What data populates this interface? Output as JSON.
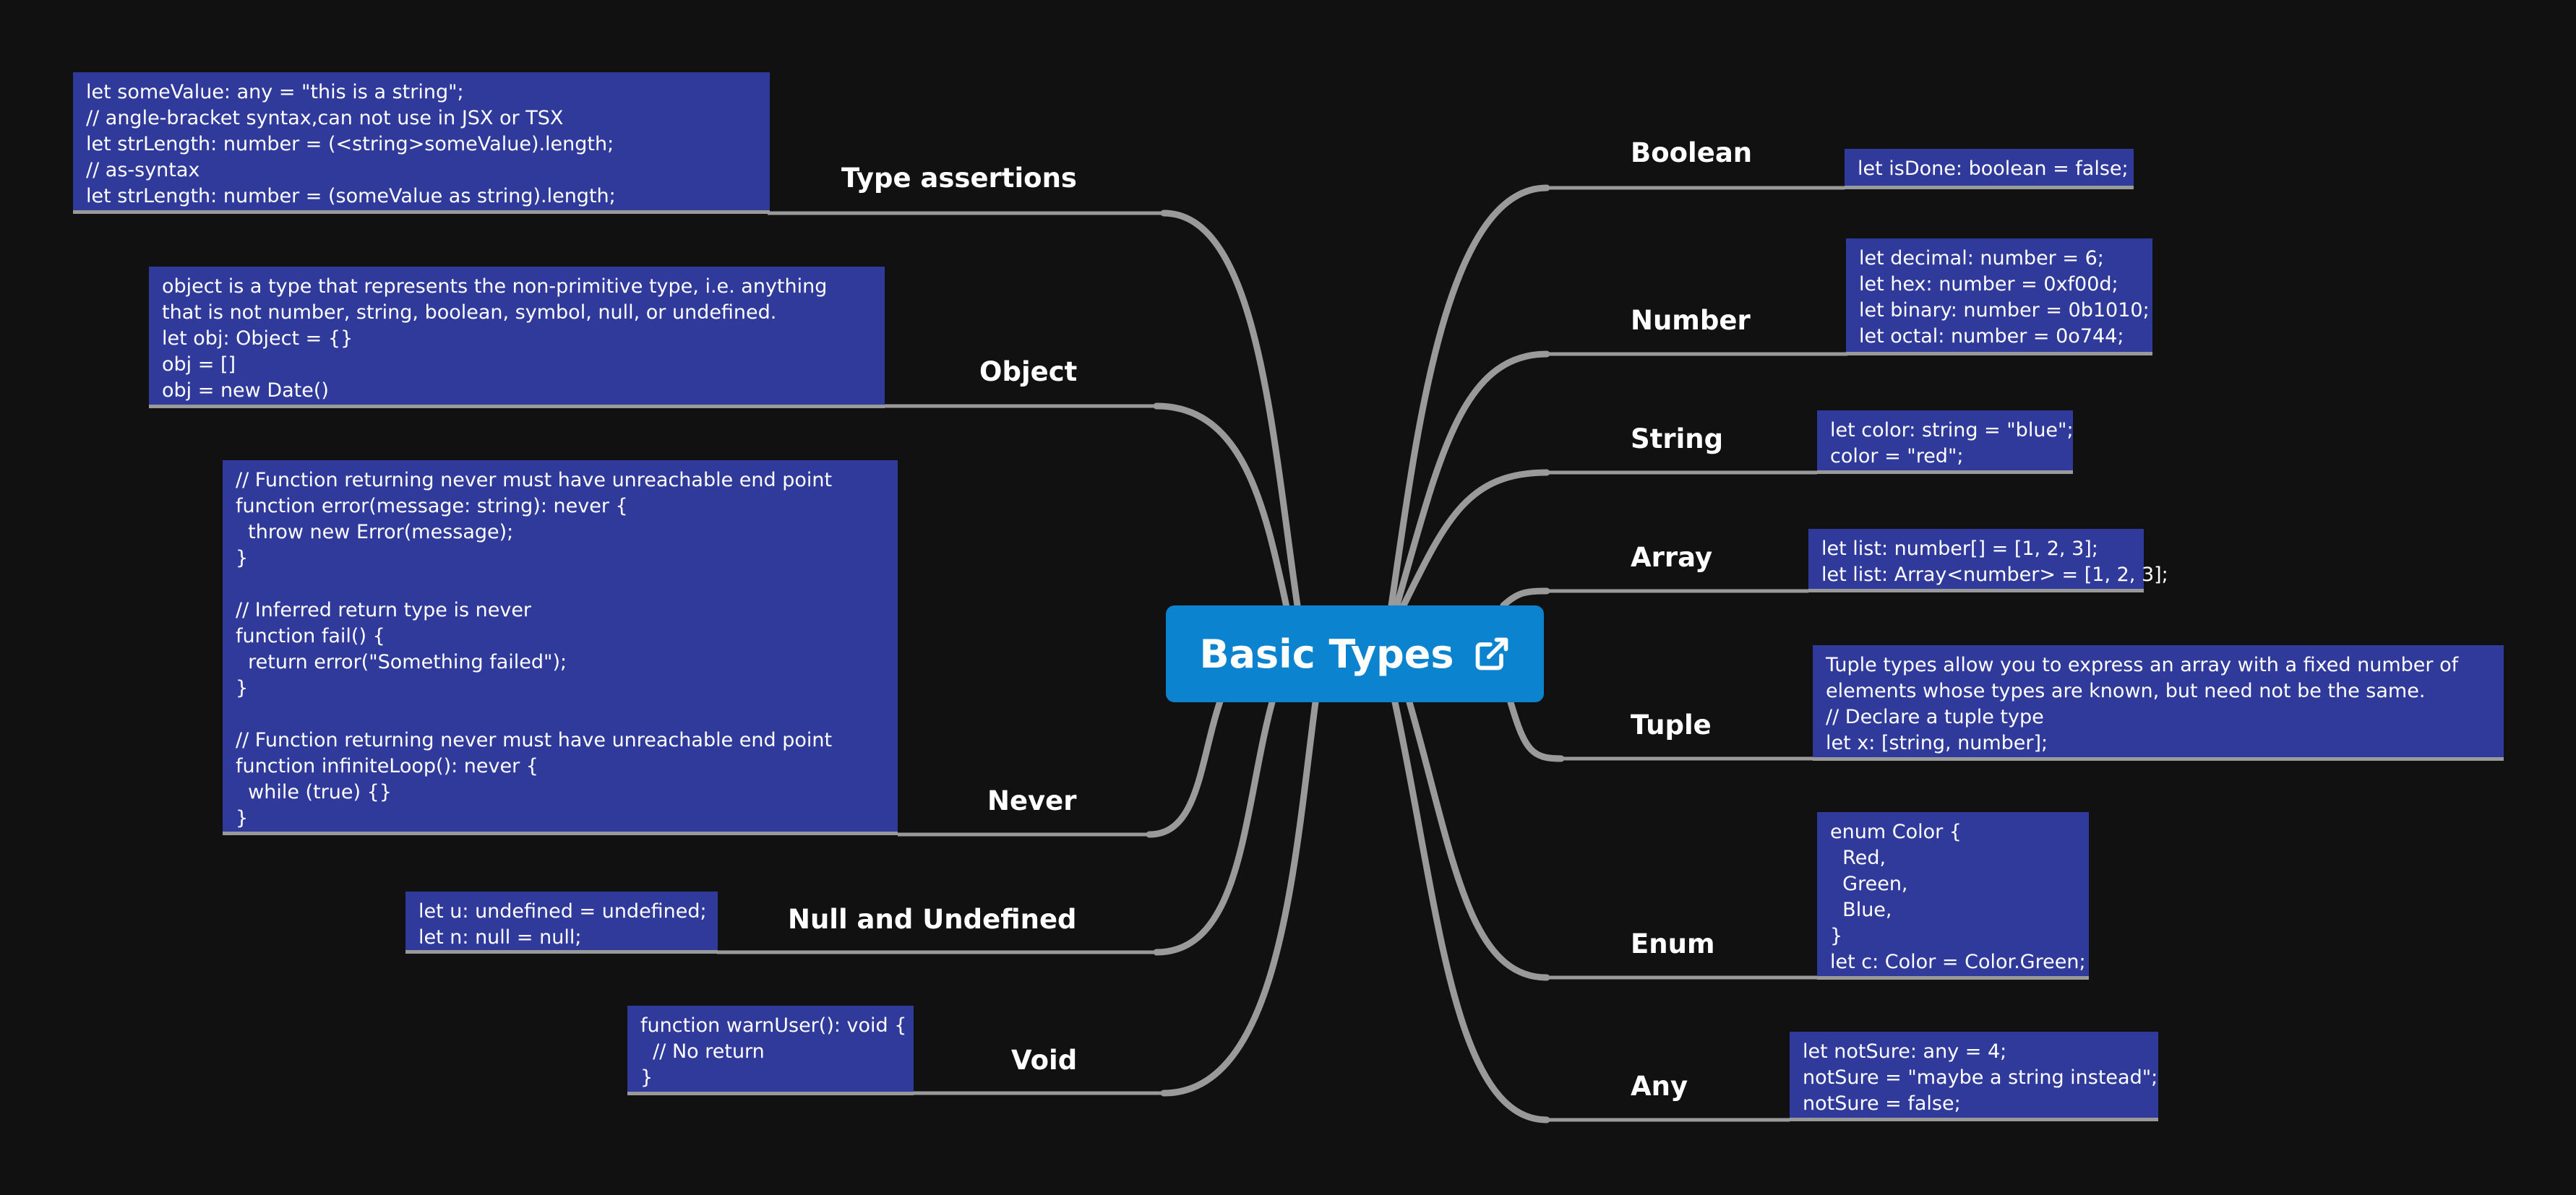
{
  "root": {
    "title": "Basic Types",
    "icon": "external-link-icon"
  },
  "colors": {
    "background": "#111111",
    "root": "#0c83cf",
    "note": "#2f3a9a",
    "connector": "#9a9a9a",
    "text": "#ffffff"
  },
  "left_branches": [
    {
      "id": "type-assertions",
      "label": "Type assertions",
      "note": "let someValue: any = \"this is a string\";\n// angle-bracket syntax,can not use in JSX or TSX\nlet strLength: number = (<string>someValue).length;\n// as-syntax\nlet strLength: number = (someValue as string).length;"
    },
    {
      "id": "object",
      "label": "Object",
      "note": "object is a type that represents the non-primitive type, i.e. anything\nthat is not number, string, boolean, symbol, null, or undefined.\nlet obj: Object = {}\nobj = []\nobj = new Date()"
    },
    {
      "id": "never",
      "label": "Never",
      "note": "// Function returning never must have unreachable end point\nfunction error(message: string): never {\n  throw new Error(message);\n}\n\n// Inferred return type is never\nfunction fail() {\n  return error(\"Something failed\");\n}\n\n// Function returning never must have unreachable end point\nfunction infiniteLoop(): never {\n  while (true) {}\n}"
    },
    {
      "id": "null-and-undefined",
      "label": "Null and Undefined",
      "note": "let u: undefined = undefined;\nlet n: null = null;"
    },
    {
      "id": "void",
      "label": "Void",
      "note": "function warnUser(): void {\n  // No return\n}"
    }
  ],
  "right_branches": [
    {
      "id": "boolean",
      "label": "Boolean",
      "note": "let isDone: boolean = false;"
    },
    {
      "id": "number",
      "label": "Number",
      "note": "let decimal: number = 6;\nlet hex: number = 0xf00d;\nlet binary: number = 0b1010;\nlet octal: number = 0o744;"
    },
    {
      "id": "string",
      "label": "String",
      "note": "let color: string = \"blue\";\ncolor = \"red\";"
    },
    {
      "id": "array",
      "label": "Array",
      "note": "let list: number[] = [1, 2, 3];\nlet list: Array<number> = [1, 2, 3];"
    },
    {
      "id": "tuple",
      "label": "Tuple",
      "note": "Tuple types allow you to express an array with a fixed number of\nelements whose types are known, but need not be the same.\n// Declare a tuple type\nlet x: [string, number];"
    },
    {
      "id": "enum",
      "label": "Enum",
      "note": "enum Color {\n  Red,\n  Green,\n  Blue,\n}\nlet c: Color = Color.Green;"
    },
    {
      "id": "any",
      "label": "Any",
      "note": "let notSure: any = 4;\nnotSure = \"maybe a string instead\";\nnotSure = false;"
    }
  ]
}
